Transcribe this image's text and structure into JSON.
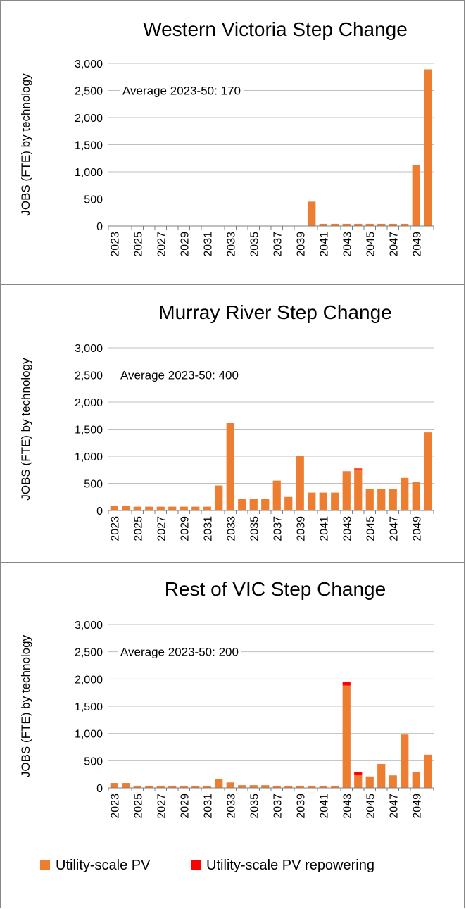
{
  "categories": [
    "2023",
    "2024",
    "2025",
    "2026",
    "2027",
    "2028",
    "2029",
    "2030",
    "2031",
    "2032",
    "2033",
    "2034",
    "2035",
    "2036",
    "2037",
    "2038",
    "2039",
    "2040",
    "2041",
    "2042",
    "2043",
    "2044",
    "2045",
    "2046",
    "2047",
    "2048",
    "2049",
    "2050"
  ],
  "tick_labels": [
    "2023",
    "2025",
    "2027",
    "2029",
    "2031",
    "2033",
    "2035",
    "2037",
    "2039",
    "2041",
    "2043",
    "2045",
    "2047",
    "2049"
  ],
  "y_ticks": [
    "0",
    "500",
    "1,000",
    "1,500",
    "2,000",
    "2,500",
    "3,000"
  ],
  "ylabel": "JOBS (FTE) by technology",
  "legend": {
    "items": [
      {
        "label": "Utility-scale PV",
        "color": "#ED7D31"
      },
      {
        "label": "Utility-scale PV repowering",
        "color": "#FF0000"
      }
    ]
  },
  "chart_data": [
    {
      "type": "bar",
      "title": "Western Victoria Step Change",
      "annotation": "Average 2023-50: 170",
      "ylim": [
        0,
        3000
      ],
      "series": [
        {
          "name": "Utility-scale PV",
          "values": [
            0,
            0,
            0,
            0,
            0,
            0,
            0,
            0,
            0,
            0,
            0,
            0,
            0,
            0,
            0,
            0,
            0,
            450,
            40,
            40,
            40,
            40,
            40,
            40,
            40,
            40,
            1130,
            2890
          ]
        },
        {
          "name": "Utility-scale PV repowering",
          "values": [
            0,
            0,
            0,
            0,
            0,
            0,
            0,
            0,
            0,
            0,
            0,
            0,
            0,
            0,
            0,
            0,
            0,
            0,
            0,
            0,
            0,
            0,
            0,
            0,
            0,
            0,
            0,
            0
          ]
        }
      ]
    },
    {
      "type": "bar",
      "title": "Murray River Step Change",
      "annotation": "Average 2023-50: 400",
      "ylim": [
        0,
        3000
      ],
      "series": [
        {
          "name": "Utility-scale PV",
          "values": [
            80,
            80,
            70,
            70,
            70,
            70,
            70,
            70,
            70,
            460,
            1610,
            220,
            220,
            220,
            550,
            250,
            1000,
            330,
            330,
            330,
            710,
            760,
            400,
            390,
            390,
            600,
            530,
            1440
          ]
        },
        {
          "name": "Utility-scale PV repowering",
          "values": [
            0,
            0,
            0,
            0,
            0,
            0,
            0,
            0,
            0,
            0,
            0,
            0,
            0,
            0,
            0,
            0,
            0,
            0,
            0,
            0,
            10,
            15,
            0,
            0,
            0,
            0,
            0,
            0
          ]
        }
      ]
    },
    {
      "type": "bar",
      "title": "Rest of VIC Step Change",
      "annotation": "Average 2023-50: 200",
      "ylim": [
        0,
        3000
      ],
      "series": [
        {
          "name": "Utility-scale PV",
          "values": [
            90,
            90,
            40,
            40,
            40,
            40,
            40,
            40,
            40,
            160,
            100,
            50,
            50,
            50,
            40,
            40,
            40,
            40,
            40,
            40,
            1880,
            230,
            210,
            440,
            230,
            980,
            290,
            610
          ]
        },
        {
          "name": "Utility-scale PV repowering",
          "values": [
            0,
            0,
            0,
            0,
            0,
            0,
            0,
            0,
            0,
            0,
            0,
            0,
            0,
            0,
            0,
            0,
            0,
            0,
            0,
            0,
            70,
            60,
            0,
            0,
            0,
            0,
            0,
            0
          ]
        }
      ]
    }
  ]
}
